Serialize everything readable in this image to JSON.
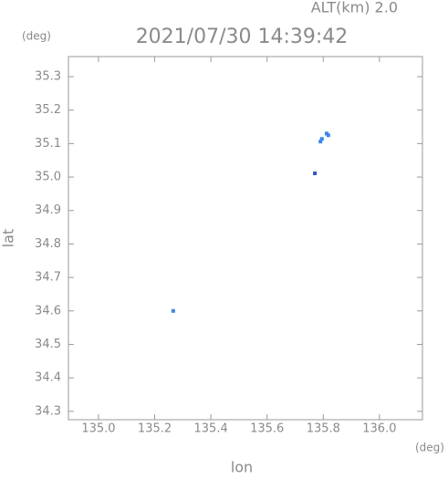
{
  "chart_data": {
    "type": "scatter",
    "title": "2021/07/30 14:39:42",
    "annotation": "ALT(km) 2.0",
    "y_unit": "(deg)",
    "x_unit": "(deg)",
    "xlabel": "lon",
    "ylabel": "lat",
    "xlim": [
      134.893,
      136.153
    ],
    "ylim": [
      34.275,
      35.36
    ],
    "xticks": [
      {
        "value": 135.0,
        "label": "135.0"
      },
      {
        "value": 135.2,
        "label": "135.2"
      },
      {
        "value": 135.4,
        "label": "135.4"
      },
      {
        "value": 135.6,
        "label": "135.6"
      },
      {
        "value": 135.8,
        "label": "135.8"
      },
      {
        "value": 136.0,
        "label": "136.0"
      }
    ],
    "yticks": [
      {
        "value": 34.3,
        "label": "34.3"
      },
      {
        "value": 34.4,
        "label": "34.4"
      },
      {
        "value": 34.5,
        "label": "34.5"
      },
      {
        "value": 34.6,
        "label": "34.6"
      },
      {
        "value": 34.7,
        "label": "34.7"
      },
      {
        "value": 34.8,
        "label": "34.8"
      },
      {
        "value": 34.9,
        "label": "34.9"
      },
      {
        "value": 35.0,
        "label": "35.0"
      },
      {
        "value": 35.1,
        "label": "35.1"
      },
      {
        "value": 35.2,
        "label": "35.2"
      },
      {
        "value": 35.3,
        "label": "35.3"
      }
    ],
    "series": [
      {
        "color": "#3a86e8",
        "x": [
          135.266,
          135.79,
          135.795,
          135.812,
          135.818
        ],
        "values": [
          34.6,
          35.106,
          35.114,
          35.13,
          35.125
        ]
      },
      {
        "color": "#3355cc",
        "x": [
          135.77
        ],
        "values": [
          35.011
        ]
      }
    ]
  }
}
